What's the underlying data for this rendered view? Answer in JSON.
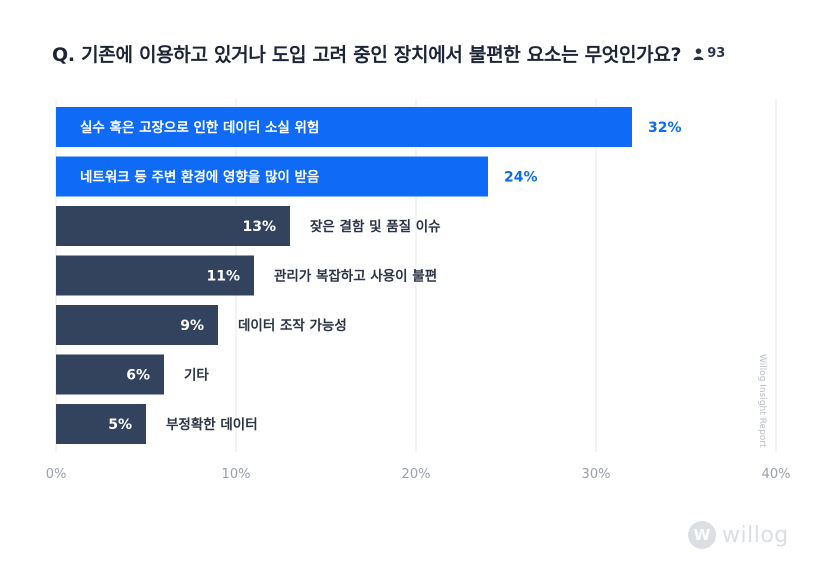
{
  "header": {
    "title": "Q. 기존에 이용하고 있거나 도입 고려 중인 장치에서 불편한 요소는 무엇인가요?",
    "respondents": "93",
    "respondents_icon": "person-icon"
  },
  "chart_data": {
    "type": "bar",
    "orientation": "horizontal",
    "categories": [
      "실수 혹은 고장으로 인한 데이터 소실 위험",
      "네트워크 등 주변 환경에 영향을 많이 받음",
      "잦은 결함 및 품질 이슈",
      "관리가 복잡하고 사용이 불편",
      "데이터 조작 가능성",
      "기타",
      "부정확한 데이터"
    ],
    "values": [
      32,
      24,
      13,
      11,
      9,
      6,
      5
    ],
    "value_labels": [
      "32%",
      "24%",
      "13%",
      "11%",
      "9%",
      "6%",
      "5%"
    ],
    "highlight": [
      true,
      true,
      false,
      false,
      false,
      false,
      false
    ],
    "xlim": [
      0,
      40
    ],
    "ticks": [
      "0%",
      "10%",
      "20%",
      "30%",
      "40%"
    ],
    "grid": true,
    "colors": {
      "highlight": "#0f6bf5",
      "normal": "#33435e",
      "grid": "#e6e8ec",
      "tick": "#9aa0a8"
    }
  },
  "watermark": {
    "side_text": "Willog Insight Report",
    "logo_mark": "W",
    "logo_text": "willog"
  }
}
